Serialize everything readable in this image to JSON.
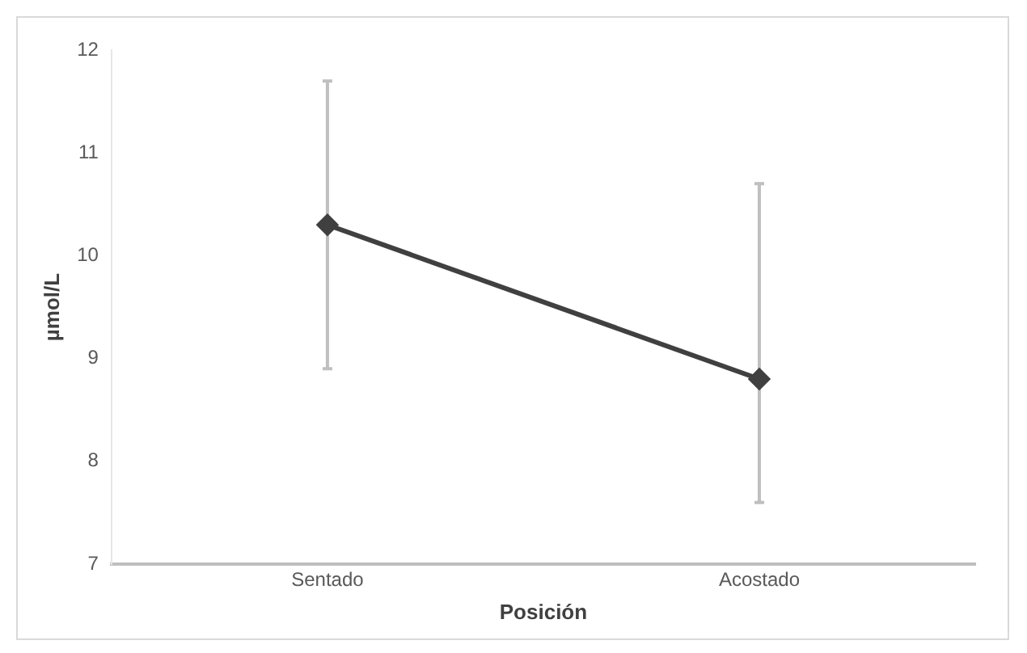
{
  "chart_data": {
    "type": "line",
    "xlabel": "Posición",
    "ylabel": "µmol/L",
    "categories": [
      "Sentado",
      "Acostado"
    ],
    "series": [
      {
        "color": "#404040",
        "values": [
          10.3,
          8.8
        ],
        "errors": [
          [
            8.9,
            11.7
          ],
          [
            7.6,
            10.7
          ]
        ]
      }
    ],
    "ylim": [
      7,
      12
    ],
    "yticks": [
      7,
      8,
      9,
      10,
      11,
      12
    ],
    "grid": false,
    "legend": false,
    "marker": "diamond",
    "line_style": "solid"
  }
}
